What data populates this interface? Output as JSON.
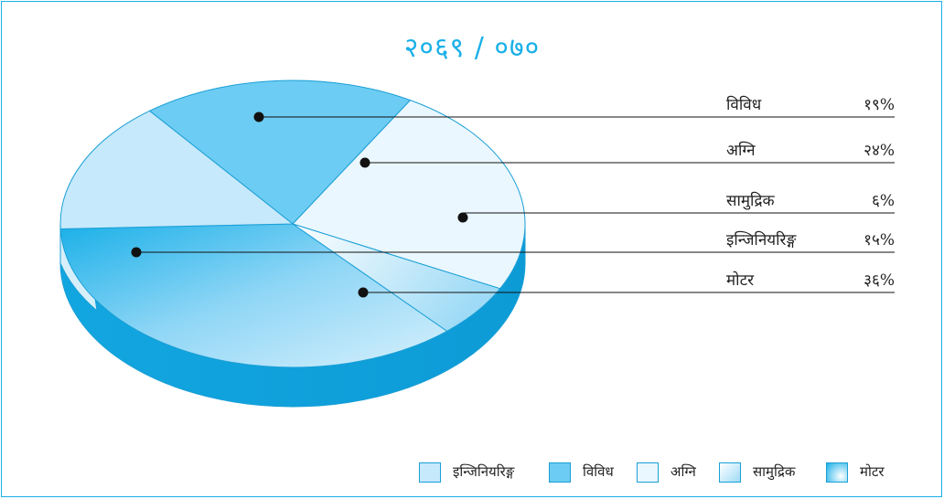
{
  "chart_data": {
    "type": "pie",
    "title": "२०६९ / ०७०",
    "slices": [
      {
        "name": "विविध",
        "value": 19,
        "value_label": "१९%",
        "color": "#6dccf3"
      },
      {
        "name": "अग्नि",
        "value": 24,
        "value_label": "२४%",
        "color": "#eaf7fe"
      },
      {
        "name": "सामुद्रिक",
        "value": 6,
        "value_label": "६%",
        "color": "#bfe7fa"
      },
      {
        "name": "इन्जिनियरिङ्ग",
        "value": 15,
        "value_label": "१५%",
        "color": "#c6e9fb"
      },
      {
        "name": "मोटर",
        "value": 36,
        "value_label": "३६%",
        "color": "#1ab0e8"
      }
    ],
    "legend": [
      {
        "name": "इन्जिनियरिङ्ग",
        "color": "#c6e9fb"
      },
      {
        "name": "विविध",
        "color": "#6dccf3"
      },
      {
        "name": "अग्नि",
        "color": "#eaf7fe"
      },
      {
        "name": "सामुद्रिक",
        "color": "#bfe7fa"
      },
      {
        "name": "मोटर",
        "color": "#1ab0e8"
      }
    ],
    "legend_position": "bottom-right"
  }
}
